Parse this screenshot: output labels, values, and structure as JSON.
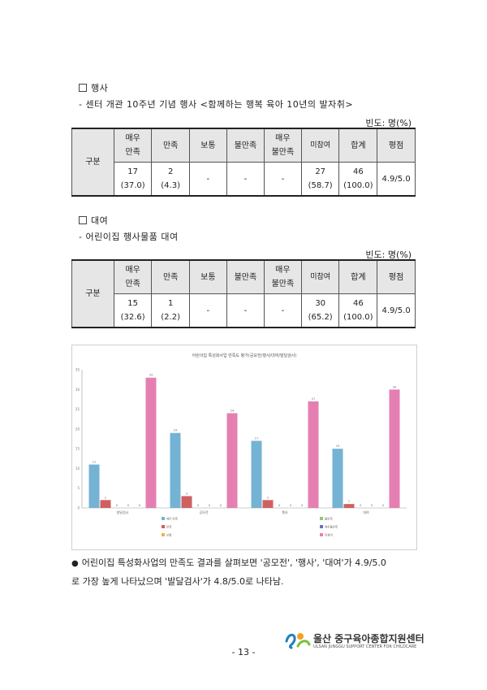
{
  "section1": {
    "heading": "행사",
    "desc": "- 센터 개관 10주년 기념 행사 <함께하는 행복 육아 10년의 발자취>"
  },
  "section2": {
    "heading": "대여",
    "desc": "- 어린이집 행사물품 대여"
  },
  "unit_label": "빈도: 명(%)",
  "table_headers": {
    "group": "구분",
    "very_satisfied": [
      "매우",
      "만족"
    ],
    "satisfied": "만족",
    "neutral": "보통",
    "dissatisfied": "불만족",
    "very_dissatisfied": [
      "매우",
      "불만족"
    ],
    "no_participation": "미참여",
    "total": "합계",
    "score": "평점"
  },
  "table1": {
    "very_satisfied": [
      "17",
      "(37.0)"
    ],
    "satisfied": [
      "2",
      "(4.3)"
    ],
    "neutral": "-",
    "dissatisfied": "-",
    "very_dissatisfied": "-",
    "no_participation": [
      "27",
      "(58.7)"
    ],
    "total": [
      "46",
      "(100.0)"
    ],
    "score": "4.9/5.0"
  },
  "table2": {
    "very_satisfied": [
      "15",
      "(32.6)"
    ],
    "satisfied": [
      "1",
      "(2.2)"
    ],
    "neutral": "-",
    "dissatisfied": "-",
    "very_dissatisfied": "-",
    "no_participation": [
      "30",
      "(65.2)"
    ],
    "total": [
      "46",
      "(100.0)"
    ],
    "score": "4.9/5.0"
  },
  "chart_data": {
    "type": "bar",
    "title": "어린이집 특성화사업 만족도 평가(공모전/행사/대여/발달검사)",
    "categories": [
      "발달검사",
      "공모전",
      "행사",
      "대여"
    ],
    "ylim": [
      0,
      35
    ],
    "yticks": [
      0,
      5,
      10,
      15,
      20,
      25,
      30,
      35
    ],
    "series": [
      {
        "name": "매우 만족",
        "color": "#74b3d4",
        "values": [
          11,
          19,
          17,
          15
        ]
      },
      {
        "name": "만족",
        "color": "#d06060",
        "values": [
          2,
          3,
          2,
          1
        ]
      },
      {
        "name": "보통",
        "color": "#f0b050",
        "values": [
          0,
          0,
          0,
          0
        ]
      },
      {
        "name": "불만족",
        "color": "#8cc97a",
        "values": [
          0,
          0,
          0,
          0
        ]
      },
      {
        "name": "매우불만족",
        "color": "#6a6fc0",
        "values": [
          0,
          0,
          0,
          0
        ]
      },
      {
        "name": "미참여",
        "color": "#e57fb2",
        "values": [
          33,
          24,
          27,
          30
        ]
      }
    ],
    "grid": false,
    "legend_position": "bottom"
  },
  "bullet_text": [
    "어린이집 특성화사업의 만족도 결과를 살펴보면 '공모전', '행사', '대여'가 4.9/5.0",
    "로 가장 높게 나타났으며 '발달검사'가 4.8/5.0로 나타남."
  ],
  "page_number": "- 13 -",
  "footer": {
    "org_name": "울산 중구육아종합지원센터",
    "org_name_en": "ULSAN JUNGGU SUPPORT CENTER FOR CHILDCARE"
  }
}
